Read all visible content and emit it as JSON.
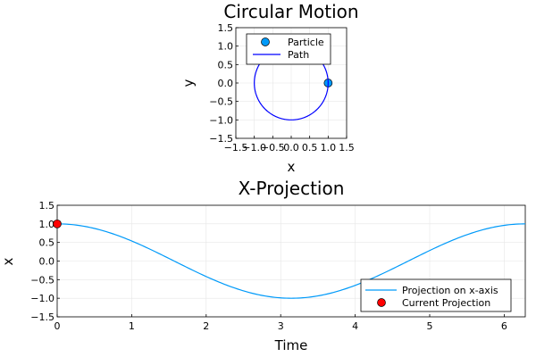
{
  "chart_data": [
    {
      "type": "scatter",
      "title": "Circular Motion",
      "xlabel": "x",
      "ylabel": "y",
      "xlim": [
        -1.5,
        1.5
      ],
      "ylim": [
        -1.5,
        1.5
      ],
      "xticks": [
        -1.5,
        -1.0,
        -0.5,
        0.0,
        0.5,
        1.0,
        1.5
      ],
      "yticks": [
        -1.5,
        -1.0,
        -0.5,
        0.0,
        0.5,
        1.0,
        1.5
      ],
      "xtick_labels": [
        "−1.5",
        "−1.0",
        "−0.5",
        "0.0",
        "0.5",
        "1.0",
        "1.5"
      ],
      "ytick_labels": [
        "−1.5",
        "−1.0",
        "−0.5",
        "0.0",
        "0.5",
        "1.0",
        "1.5"
      ],
      "grid": true,
      "legend_position": "top-right",
      "series": [
        {
          "name": "Particle",
          "kind": "marker",
          "color": "#009af9",
          "x": [
            1.0
          ],
          "y": [
            0.0
          ]
        },
        {
          "name": "Path",
          "kind": "line",
          "color": "#0000ff",
          "curve": "unit circle x = cos(t), y = sin(t), t from 0 to 2π"
        }
      ]
    },
    {
      "type": "line",
      "title": "X-Projection",
      "xlabel": "Time",
      "ylabel": "x",
      "xlim": [
        0,
        6.283
      ],
      "ylim": [
        -1.5,
        1.5
      ],
      "xticks": [
        0,
        1,
        2,
        3,
        4,
        5,
        6
      ],
      "yticks": [
        -1.5,
        -1.0,
        -0.5,
        0.0,
        0.5,
        1.0,
        1.5
      ],
      "xtick_labels": [
        "0",
        "1",
        "2",
        "3",
        "4",
        "5",
        "6"
      ],
      "ytick_labels": [
        "−1.5",
        "−1.0",
        "−0.5",
        "0.0",
        "0.5",
        "1.0",
        "1.5"
      ],
      "grid": true,
      "legend_position": "bottom-right",
      "series": [
        {
          "name": "Projection on x-axis",
          "kind": "line",
          "color": "#009af9",
          "curve": "x = cos(t), t from 0 to 2π"
        },
        {
          "name": "Current Projection",
          "kind": "marker",
          "color": "#ff0000",
          "x": [
            0.0
          ],
          "y": [
            1.0
          ]
        }
      ]
    }
  ]
}
